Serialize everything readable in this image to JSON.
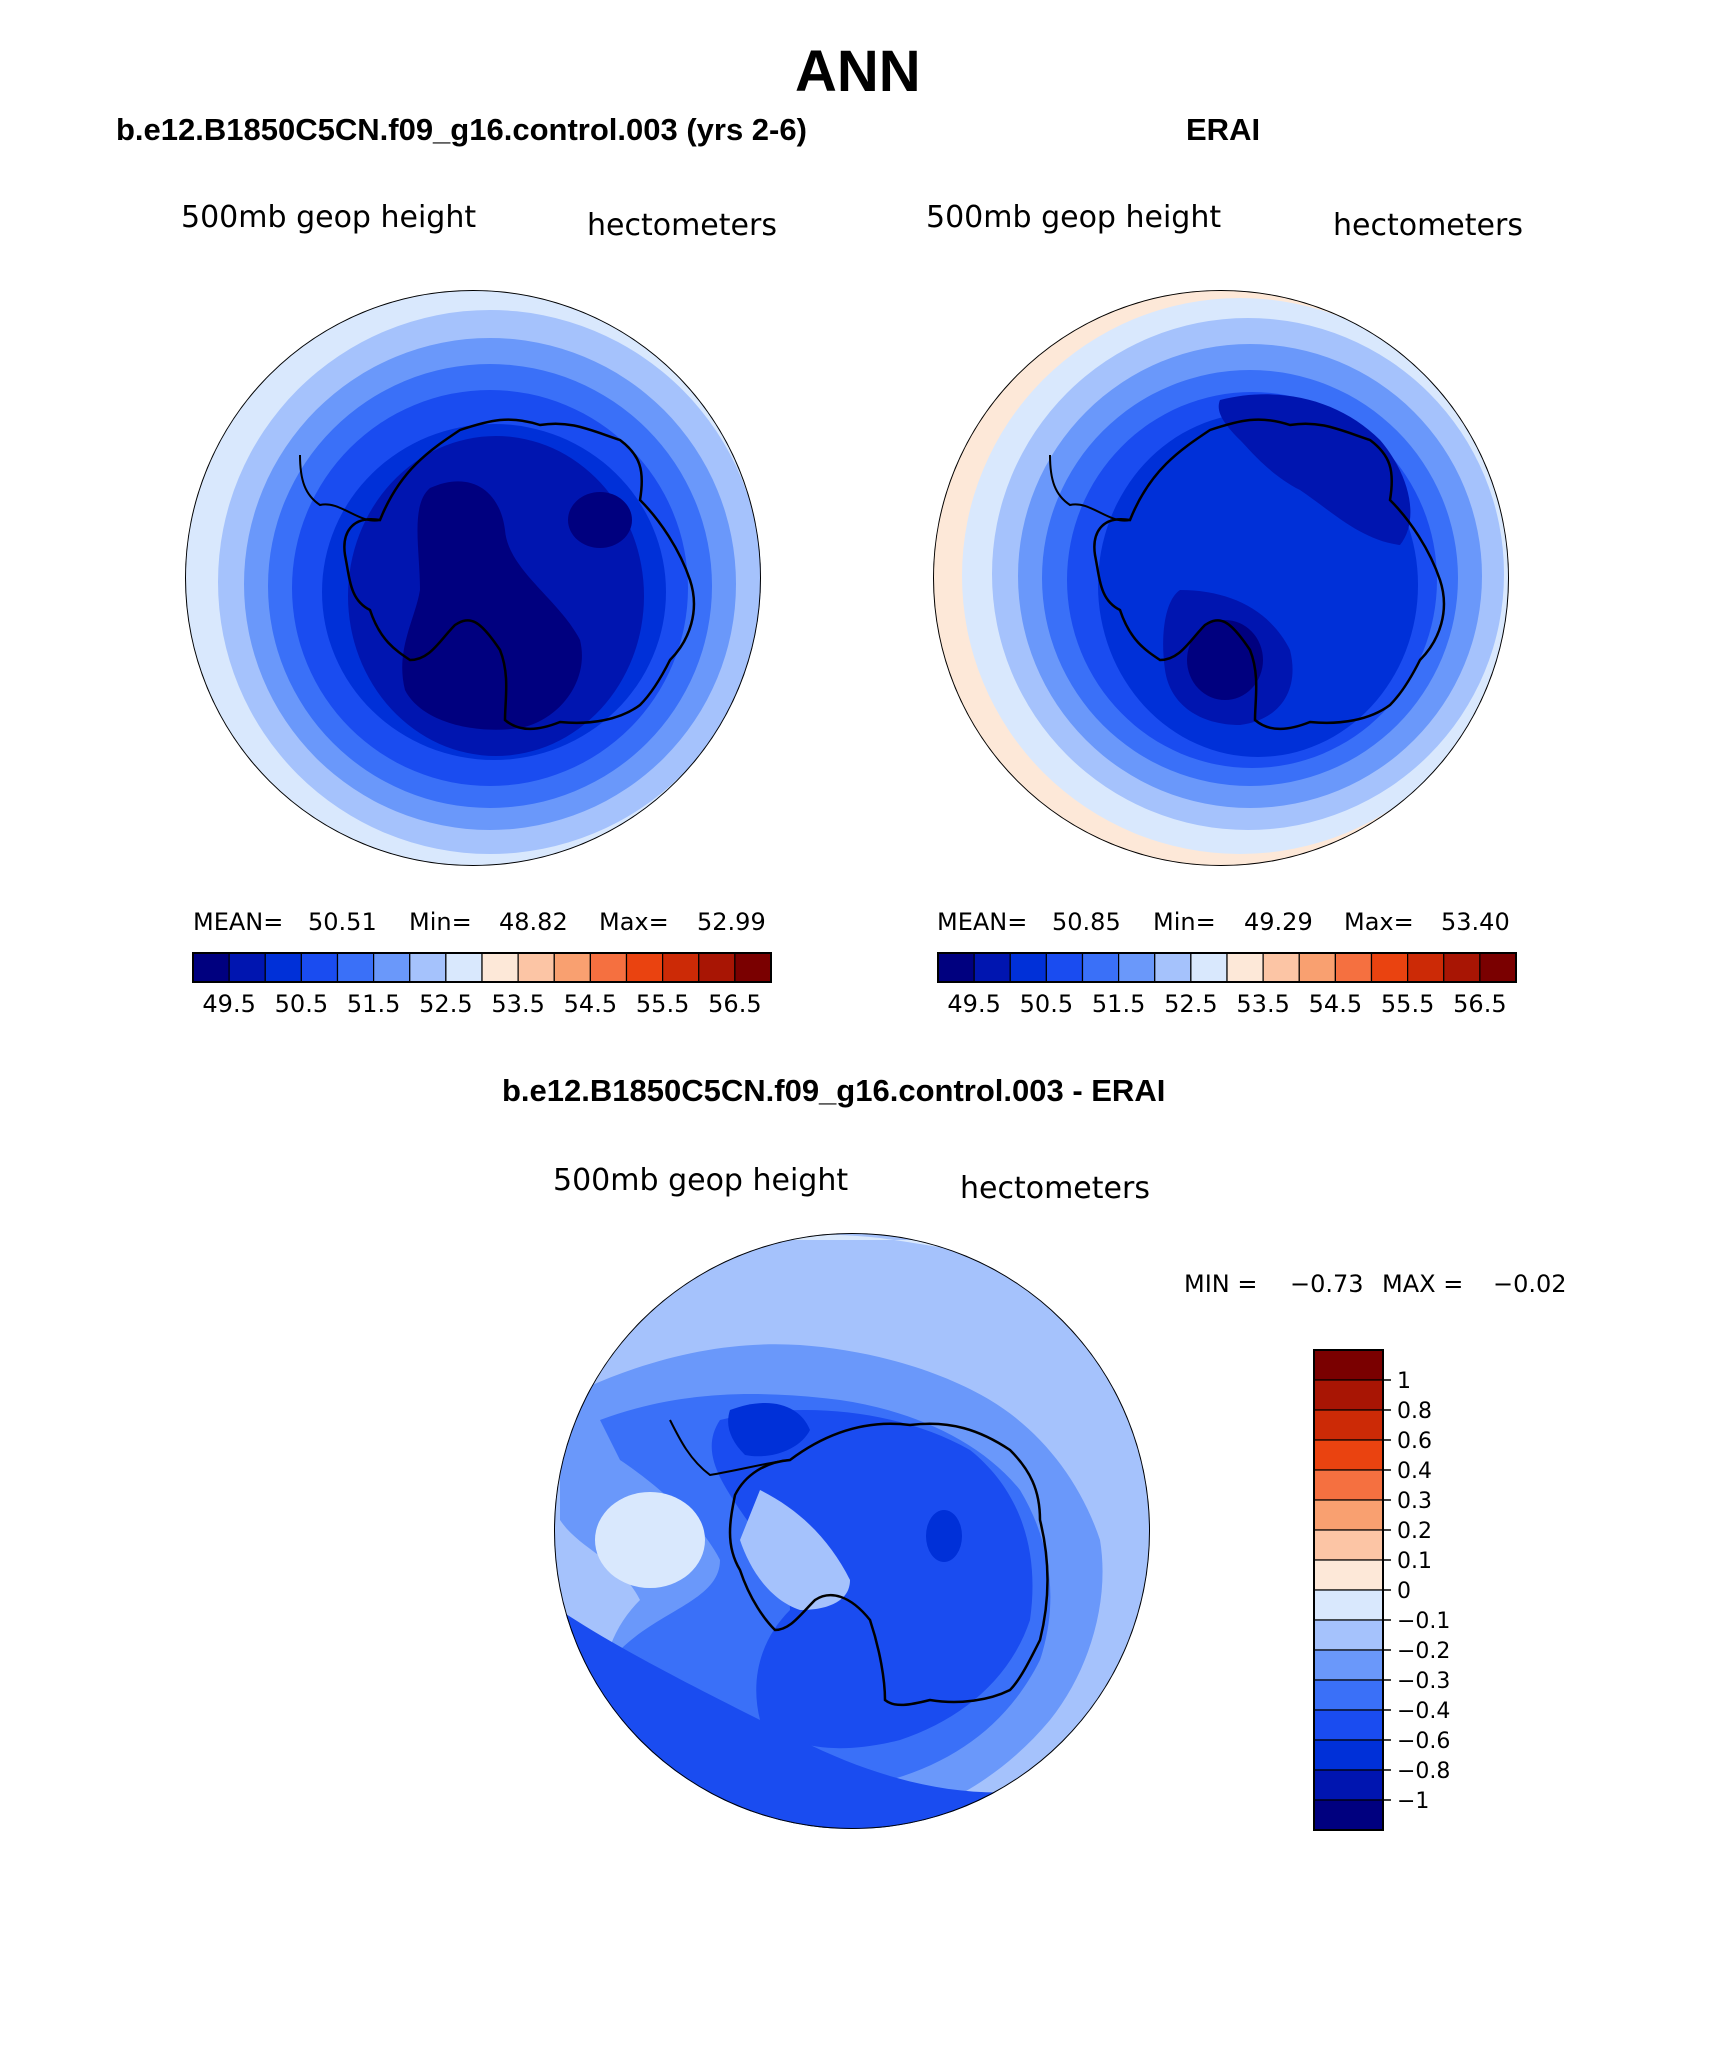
{
  "page": {
    "title": "ANN"
  },
  "panels": [
    {
      "title": "b.e12.B1850C5CN.f09_g16.control.003 (yrs 2-6)",
      "variable": "500mb geop height",
      "units": "hectometers",
      "stats": {
        "mean_label": "MEAN=",
        "mean": "50.51",
        "min_label": "Min=",
        "min": "48.82",
        "max_label": "Max=",
        "max": "52.99"
      }
    },
    {
      "title": "ERAI",
      "variable": "500mb geop height",
      "units": "hectometers",
      "stats": {
        "mean_label": "MEAN=",
        "mean": "50.85",
        "min_label": "Min=",
        "min": "49.29",
        "max_label": "Max=",
        "max": "53.40"
      }
    },
    {
      "title": "b.e12.B1850C5CN.f09_g16.control.003 - ERAI",
      "variable": "500mb geop height",
      "units": "hectometers",
      "stats": {
        "min_label": "MIN =",
        "min": "−0.73",
        "max_label": "MAX =",
        "max": "−0.02"
      }
    }
  ],
  "colorbar_abs": {
    "colors": [
      "#00007f",
      "#0015b0",
      "#0030d8",
      "#1a4cf0",
      "#3a70f8",
      "#6a98fa",
      "#a5c2fc",
      "#d9e8fd",
      "#fde8d8",
      "#fcc5a5",
      "#f9a070",
      "#f57040",
      "#ea4310",
      "#cc2a06",
      "#a81504",
      "#7a0000"
    ],
    "labels": [
      "49.5",
      "50.5",
      "51.5",
      "52.5",
      "53.5",
      "54.5",
      "55.5",
      "56.5"
    ]
  },
  "colorbar_diff": {
    "colors": [
      "#00007f",
      "#0015b0",
      "#0030d8",
      "#1a4cf0",
      "#3a70f8",
      "#6a98fa",
      "#a5c2fc",
      "#d9e8fd",
      "#fde8d8",
      "#fcc5a5",
      "#f9a070",
      "#f57040",
      "#ea4310",
      "#cc2a06",
      "#a81504",
      "#7a0000"
    ],
    "labels": [
      "−1",
      "−0.8",
      "−0.6",
      "−0.4",
      "−0.3",
      "−0.2",
      "−0.1",
      "0",
      "0.1",
      "0.2",
      "0.3",
      "0.4",
      "0.6",
      "0.8",
      "1"
    ]
  }
}
